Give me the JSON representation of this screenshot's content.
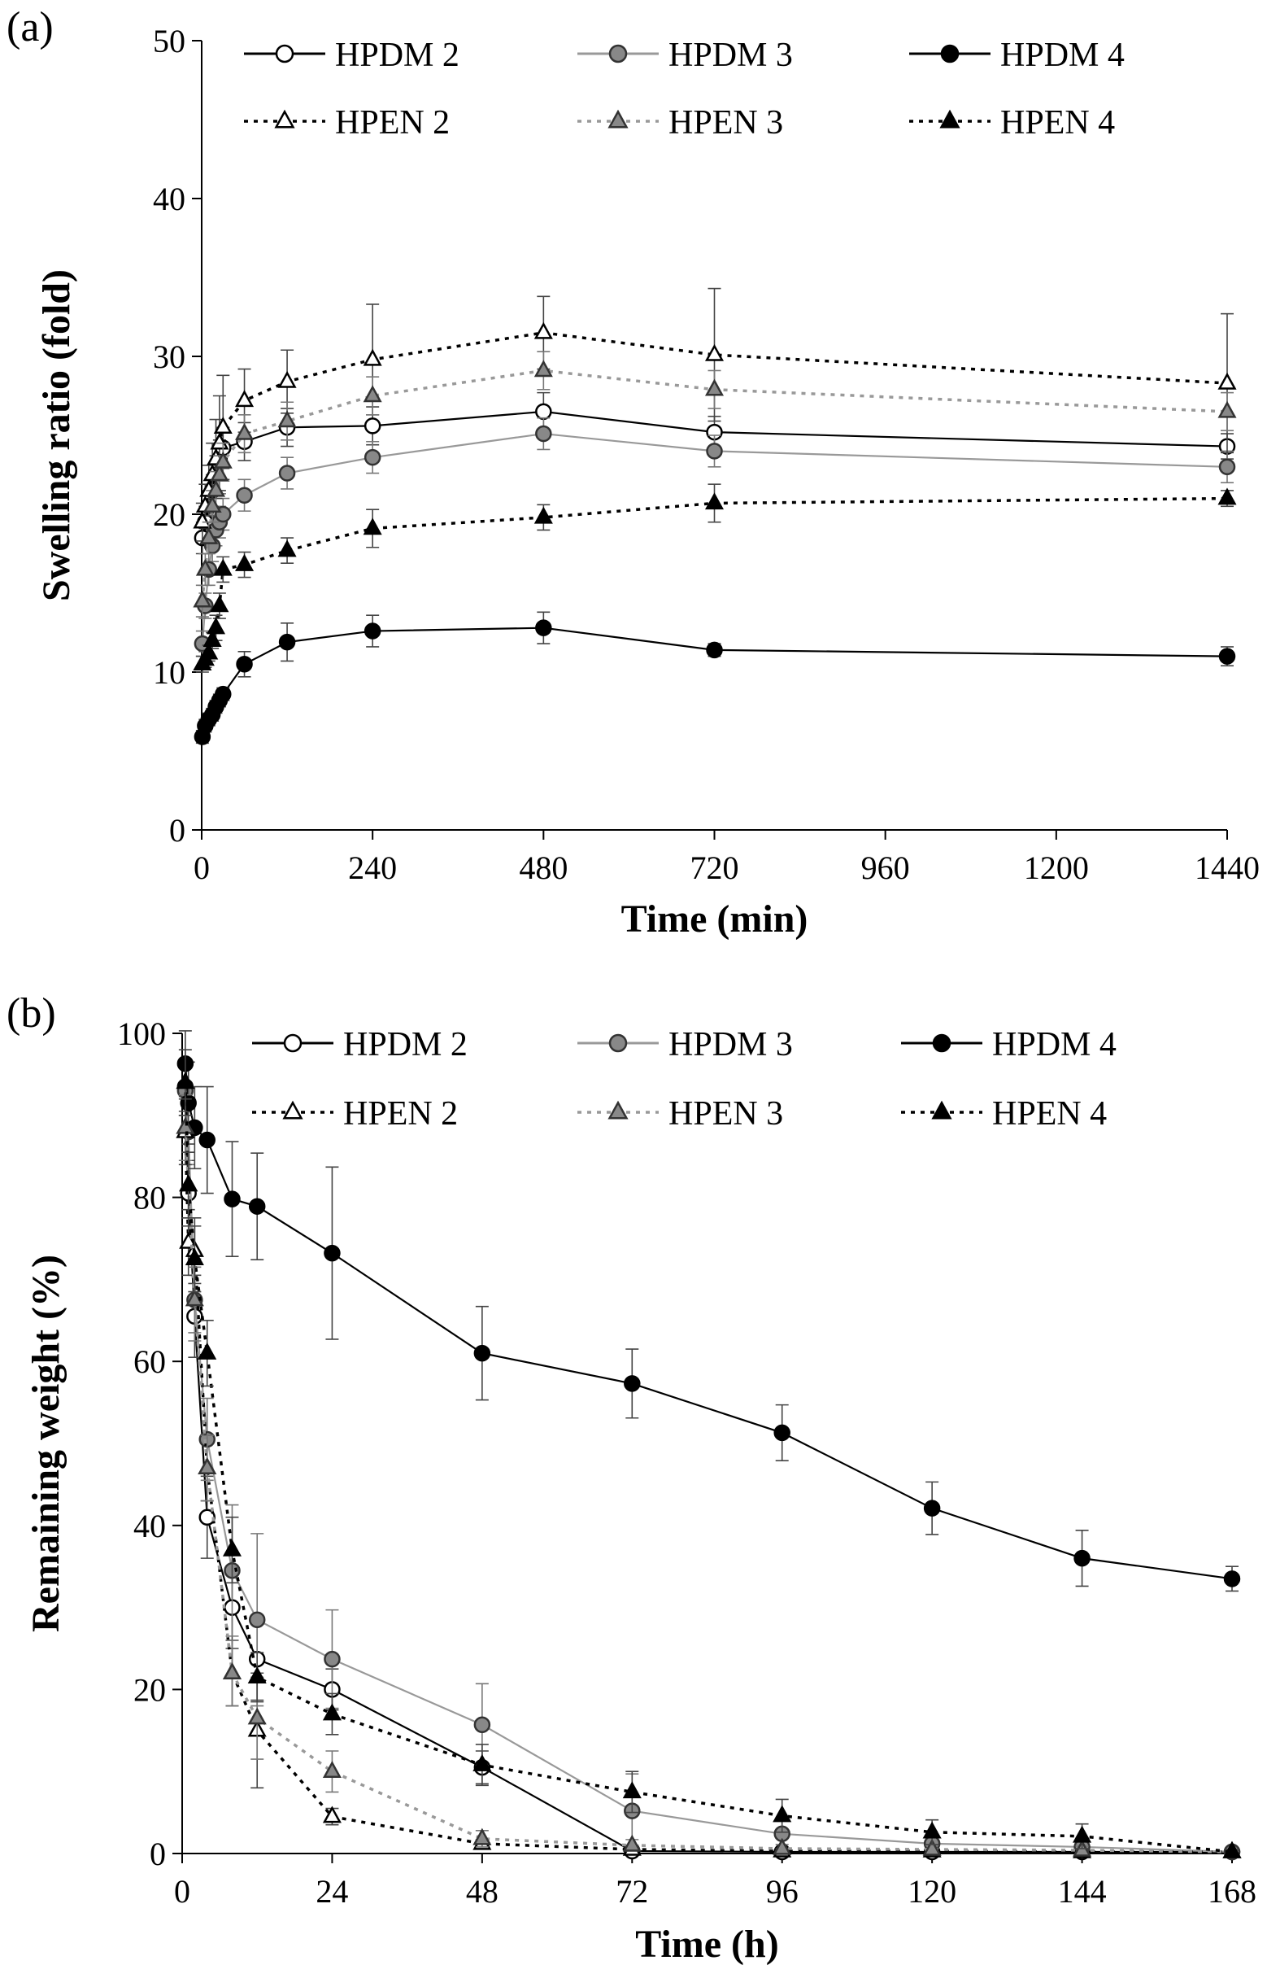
{
  "panels": [
    {
      "label": "(a)"
    },
    {
      "label": "(b)"
    }
  ],
  "series_styles": [
    {
      "name": "HPDM 2",
      "marker": "circle",
      "fill": "#ffffff",
      "stroke": "#000000",
      "line": "#000000",
      "dash": "solid"
    },
    {
      "name": "HPDM 3",
      "marker": "circle",
      "fill": "#888888",
      "stroke": "#333333",
      "line": "#999999",
      "dash": "solid"
    },
    {
      "name": "HPDM 4",
      "marker": "circle",
      "fill": "#000000",
      "stroke": "#000000",
      "line": "#000000",
      "dash": "solid"
    },
    {
      "name": "HPEN 2",
      "marker": "triangle",
      "fill": "#ffffff",
      "stroke": "#000000",
      "line": "#000000",
      "dash": "dotted"
    },
    {
      "name": "HPEN 3",
      "marker": "triangle",
      "fill": "#888888",
      "stroke": "#333333",
      "line": "#999999",
      "dash": "dotted"
    },
    {
      "name": "HPEN 4",
      "marker": "triangle",
      "fill": "#000000",
      "stroke": "#000000",
      "line": "#000000",
      "dash": "dotted"
    }
  ],
  "chart_data": [
    {
      "type": "line",
      "panel": "(a)",
      "xlabel": "Time (min)",
      "ylabel": "Swelling ratio (fold)",
      "xlim": [
        0,
        1440
      ],
      "ylim": [
        0,
        50
      ],
      "xticks": [
        0,
        240,
        480,
        720,
        960,
        1200,
        1440
      ],
      "yticks": [
        0,
        10,
        20,
        30,
        40,
        50
      ],
      "legend_position": "top",
      "x": [
        1,
        5,
        10,
        15,
        20,
        25,
        30,
        60,
        120,
        240,
        480,
        720,
        1440
      ],
      "series": [
        {
          "name": "HPDM 2",
          "values": [
            18.5,
            19.5,
            20.5,
            21.5,
            22.5,
            23.5,
            24.2,
            24.6,
            25.5,
            25.6,
            26.5,
            25.2,
            24.3
          ],
          "errors": [
            1.0,
            1.0,
            1.0,
            1.0,
            1.2,
            1.2,
            1.3,
            1.2,
            1.2,
            1.2,
            1.2,
            1.0,
            0.8
          ]
        },
        {
          "name": "HPDM 3",
          "values": [
            11.8,
            14.2,
            16.5,
            18.0,
            19.0,
            19.5,
            20.0,
            21.2,
            22.6,
            23.6,
            25.1,
            24.0,
            23.0
          ],
          "errors": [
            0.8,
            0.8,
            1.0,
            1.0,
            1.0,
            1.0,
            1.0,
            1.0,
            1.0,
            1.0,
            1.0,
            1.0,
            1.0
          ]
        },
        {
          "name": "HPDM 4",
          "values": [
            5.9,
            6.6,
            7.0,
            7.3,
            7.8,
            8.2,
            8.6,
            10.5,
            11.9,
            12.6,
            12.8,
            11.4,
            11.0
          ],
          "errors": [
            0.4,
            0.4,
            0.4,
            0.4,
            0.4,
            0.4,
            0.4,
            0.8,
            1.2,
            1.0,
            1.0,
            0.4,
            0.6
          ]
        },
        {
          "name": "HPEN 2",
          "values": [
            19.5,
            20.5,
            21.5,
            22.5,
            23.5,
            24.5,
            25.5,
            27.2,
            28.4,
            29.8,
            31.5,
            30.1,
            28.3
          ],
          "errors": [
            1.2,
            1.4,
            1.6,
            2.0,
            2.5,
            3.0,
            3.3,
            2.0,
            2.0,
            3.5,
            2.3,
            4.2,
            4.4
          ]
        },
        {
          "name": "HPEN 3",
          "values": [
            14.5,
            16.5,
            18.5,
            20.5,
            21.5,
            22.5,
            23.3,
            25.1,
            25.9,
            27.5,
            29.1,
            27.9,
            26.5
          ],
          "errors": [
            1.0,
            1.0,
            1.0,
            1.0,
            1.2,
            1.2,
            1.2,
            1.2,
            1.2,
            1.2,
            1.2,
            1.2,
            1.2
          ]
        },
        {
          "name": "HPEN 4",
          "values": [
            10.5,
            10.8,
            11.2,
            12.0,
            12.8,
            14.2,
            16.5,
            16.8,
            17.7,
            19.1,
            19.8,
            20.7,
            21.0
          ],
          "errors": [
            0.5,
            0.5,
            0.5,
            0.5,
            0.8,
            0.8,
            0.8,
            0.8,
            0.8,
            1.2,
            0.8,
            1.2,
            0.5
          ]
        }
      ]
    },
    {
      "type": "line",
      "panel": "(b)",
      "xlabel": "Time (h)",
      "ylabel": "Remaining weight (%)",
      "xlim": [
        0,
        168
      ],
      "ylim": [
        0,
        100
      ],
      "xticks": [
        0,
        24,
        48,
        72,
        96,
        120,
        144,
        168
      ],
      "yticks": [
        0,
        20,
        40,
        60,
        80,
        100
      ],
      "legend_position": "top",
      "series": [
        {
          "name": "HPDM 2",
          "x": [
            0.5,
            1,
            2,
            4,
            8,
            12,
            24,
            48,
            72,
            96,
            120,
            144,
            168
          ],
          "values": [
            93.5,
            80.5,
            65.5,
            41.0,
            30.0,
            23.7,
            20.0,
            10.5,
            0.3,
            0.2,
            0.2,
            0.2,
            0.2
          ],
          "errors": [
            3,
            4,
            5,
            5,
            5,
            5,
            2.5,
            2,
            0.5,
            0.5,
            0.5,
            0.5,
            0.3
          ]
        },
        {
          "name": "HPDM 3",
          "x": [
            0.5,
            1,
            2,
            4,
            8,
            12,
            24,
            48,
            72,
            96,
            120,
            144,
            168
          ],
          "values": [
            93.0,
            88.0,
            67.5,
            50.5,
            34.5,
            28.5,
            23.7,
            15.7,
            5.2,
            2.4,
            1.2,
            0.8,
            0.2
          ],
          "errors": [
            3,
            4,
            5,
            5,
            8,
            10.5,
            6,
            5,
            4.5,
            2,
            1,
            1,
            0.5
          ]
        },
        {
          "name": "HPDM 4",
          "x": [
            0.5,
            1,
            2,
            4,
            8,
            12,
            24,
            48,
            72,
            96,
            120,
            144,
            168
          ],
          "values": [
            96.3,
            91.5,
            88.5,
            87.0,
            79.8,
            78.9,
            73.2,
            61.0,
            57.3,
            51.3,
            42.1,
            36.0,
            33.5
          ],
          "errors": [
            4,
            5,
            5,
            6.5,
            7,
            6.5,
            10.5,
            5.7,
            4.2,
            3.4,
            3.2,
            3.4,
            1.5
          ]
        },
        {
          "name": "HPEN 2",
          "x": [
            0.5,
            1,
            2,
            4,
            8,
            12,
            24,
            48,
            72,
            96,
            120,
            144,
            168
          ],
          "values": [
            88.0,
            74.5,
            73.5,
            47.0,
            22.0,
            15.0,
            4.5,
            1.2,
            0.5,
            0.3,
            0.3,
            0.2,
            0.2
          ],
          "errors": [
            4,
            4,
            4,
            4,
            4,
            7,
            1,
            0.5,
            0.5,
            0.3,
            0.3,
            0.3,
            0.2
          ]
        },
        {
          "name": "HPEN 3",
          "x": [
            0.5,
            1,
            2,
            4,
            8,
            12,
            24,
            48,
            72,
            96,
            120,
            144,
            168
          ],
          "values": [
            88.5,
            81.5,
            67.5,
            47.0,
            22.0,
            16.5,
            10.0,
            1.8,
            1.0,
            0.6,
            0.5,
            0.4,
            0.2
          ],
          "errors": [
            4,
            4,
            4,
            4,
            4,
            5,
            2.5,
            1,
            0.7,
            0.5,
            0.5,
            0.5,
            0.3
          ]
        },
        {
          "name": "HPEN 4",
          "x": [
            0.5,
            1,
            2,
            4,
            8,
            12,
            24,
            48,
            72,
            96,
            120,
            144,
            168
          ],
          "values": [
            94.0,
            81.5,
            72.5,
            61.0,
            37.0,
            21.5,
            17.0,
            10.8,
            7.5,
            4.6,
            2.6,
            2.1,
            0.2
          ],
          "errors": [
            4,
            4,
            4,
            4,
            4,
            3,
            2.5,
            2.5,
            2.5,
            2,
            1.5,
            1.5,
            0.3
          ]
        }
      ]
    }
  ]
}
